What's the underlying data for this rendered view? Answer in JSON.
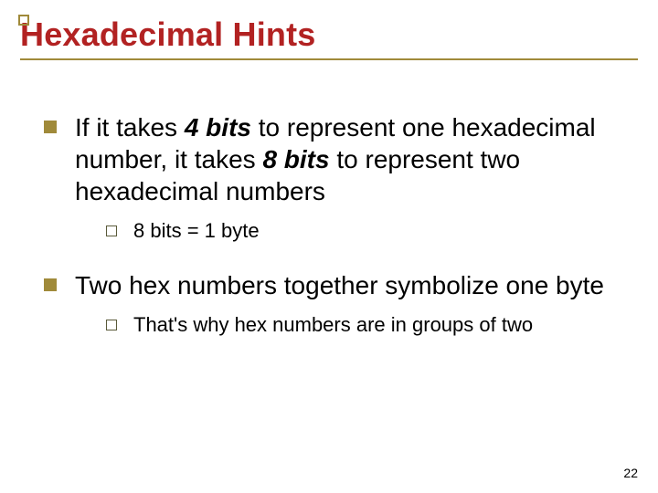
{
  "slide": {
    "title": "Hexadecimal Hints",
    "title_color": "#b22222",
    "accent_color": "#a08a3a",
    "bg_color": "#ffffff",
    "title_fontsize": 36,
    "body_fontsize": 28,
    "sub_fontsize": 22,
    "bullets": [
      {
        "parts": [
          {
            "t": "If it takes "
          },
          {
            "t": "4 bits",
            "bold": true,
            "italic": true
          },
          {
            "t": " to represent one hexadecimal number, it takes "
          },
          {
            "t": "8 bits",
            "bold": true,
            "italic": true
          },
          {
            "t": " to represent two hexadecimal numbers"
          }
        ],
        "sub": [
          {
            "parts": [
              {
                "t": "8 bits = 1 byte"
              }
            ]
          }
        ]
      },
      {
        "parts": [
          {
            "t": "Two hex numbers together symbolize one byte"
          }
        ],
        "sub": [
          {
            "parts": [
              {
                "t": "That's why hex numbers are in groups of two"
              }
            ]
          }
        ]
      }
    ],
    "page_number": "22"
  }
}
